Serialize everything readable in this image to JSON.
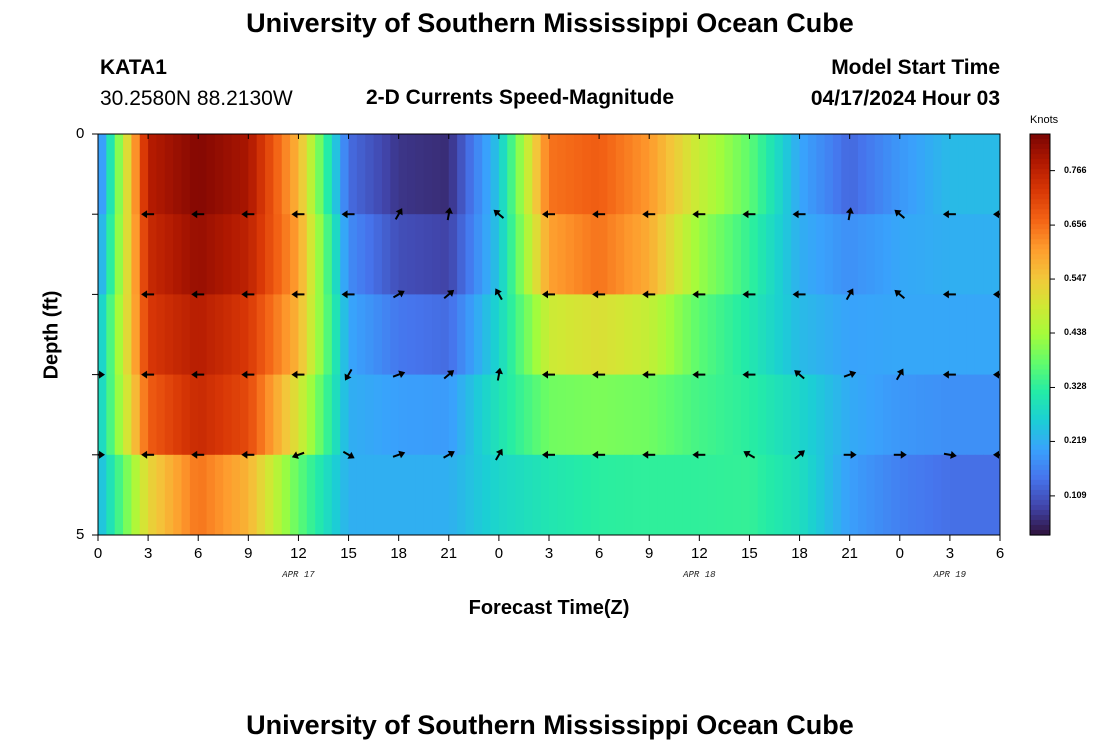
{
  "header": {
    "title": "University of Southern Mississippi Ocean Cube",
    "station": "KATA1",
    "coords": "30.2580N  88.2130W",
    "subtitle": "2-D Currents Speed-Magnitude",
    "model_label": "Model Start Time",
    "model_time": "04/17/2024 Hour 03"
  },
  "footer": {
    "title": "University of Southern Mississippi Ocean Cube"
  },
  "colorbar": {
    "unit": "Knots",
    "ticks": [
      "0.766",
      "0.656",
      "0.547",
      "0.438",
      "0.328",
      "0.219",
      "0.109"
    ],
    "tick_values": [
      0.766,
      0.656,
      0.547,
      0.438,
      0.328,
      0.219,
      0.109
    ],
    "range": [
      0.03,
      0.84
    ],
    "colors": [
      "#30123b",
      "#4145ab",
      "#4675ed",
      "#39a2fc",
      "#1bcfd4",
      "#24eca6",
      "#61fc6c",
      "#a4fc3b",
      "#d1e834",
      "#f3c63a",
      "#fe9b2d",
      "#f36315",
      "#d93806",
      "#b11901",
      "#7a0403"
    ]
  },
  "chart_data": {
    "type": "heatmap",
    "title": "2-D Currents Speed-Magnitude",
    "xlabel": "Forecast Time(Z)",
    "ylabel": "Depth (ft)",
    "x_tick_labels": [
      "0",
      "3",
      "6",
      "9",
      "12",
      "15",
      "18",
      "21",
      "0",
      "3",
      "6",
      "9",
      "12",
      "15",
      "18",
      "21",
      "0",
      "3",
      "6"
    ],
    "date_labels": [
      {
        "text": "APR 17",
        "hour": 12
      },
      {
        "text": "APR 18",
        "hour": 36
      },
      {
        "text": "APR 19",
        "hour": 51
      }
    ],
    "y_tick_labels": [
      "0",
      "5"
    ],
    "xlim": [
      0,
      54
    ],
    "ylim": [
      0,
      5
    ],
    "hours": [
      0,
      3,
      6,
      9,
      12,
      15,
      18,
      21,
      24,
      27,
      30,
      33,
      36,
      39,
      42,
      45,
      48,
      51,
      54
    ],
    "depths": [
      0,
      1,
      2,
      3,
      4,
      5
    ],
    "speed_knots": [
      [
        0.15,
        0.8,
        0.84,
        0.8,
        0.55,
        0.12,
        0.06,
        0.05,
        0.25,
        0.65,
        0.65,
        0.6,
        0.5,
        0.4,
        0.2,
        0.1,
        0.18,
        0.25,
        0.25
      ],
      [
        0.15,
        0.75,
        0.82,
        0.78,
        0.6,
        0.15,
        0.08,
        0.07,
        0.25,
        0.65,
        0.7,
        0.62,
        0.45,
        0.35,
        0.22,
        0.16,
        0.2,
        0.22,
        0.22
      ],
      [
        0.22,
        0.75,
        0.8,
        0.75,
        0.6,
        0.2,
        0.12,
        0.1,
        0.25,
        0.55,
        0.6,
        0.55,
        0.4,
        0.32,
        0.22,
        0.2,
        0.22,
        0.22,
        0.22
      ],
      [
        0.25,
        0.7,
        0.75,
        0.7,
        0.55,
        0.22,
        0.18,
        0.17,
        0.3,
        0.42,
        0.42,
        0.4,
        0.34,
        0.3,
        0.25,
        0.21,
        0.2,
        0.2,
        0.2
      ],
      [
        0.25,
        0.65,
        0.75,
        0.7,
        0.45,
        0.22,
        0.22,
        0.22,
        0.3,
        0.36,
        0.38,
        0.38,
        0.36,
        0.35,
        0.3,
        0.22,
        0.18,
        0.16,
        0.16
      ],
      [
        0.2,
        0.4,
        0.55,
        0.45,
        0.3,
        0.22,
        0.22,
        0.22,
        0.25,
        0.25,
        0.27,
        0.28,
        0.3,
        0.32,
        0.28,
        0.18,
        0.14,
        0.12,
        0.12
      ]
    ],
    "arrow_hours": [
      0,
      3,
      6,
      9,
      12,
      15,
      18,
      21,
      24,
      27,
      30,
      33,
      36,
      39,
      42,
      45,
      48,
      51,
      54
    ],
    "arrow_depths": [
      1,
      2,
      3,
      4
    ],
    "arrow_direction_deg": [
      [
        null,
        180,
        180,
        180,
        180,
        180,
        60,
        80,
        140,
        180,
        180,
        180,
        180,
        180,
        180,
        80,
        140,
        180,
        180
      ],
      [
        null,
        180,
        180,
        180,
        180,
        180,
        30,
        40,
        120,
        180,
        180,
        180,
        180,
        180,
        180,
        60,
        140,
        180,
        180
      ],
      [
        0,
        180,
        180,
        180,
        180,
        240,
        20,
        40,
        80,
        180,
        180,
        180,
        180,
        180,
        140,
        20,
        60,
        180,
        180
      ],
      [
        0,
        180,
        180,
        180,
        200,
        330,
        20,
        30,
        60,
        180,
        180,
        180,
        180,
        150,
        40,
        0,
        0,
        350,
        180
      ]
    ]
  }
}
